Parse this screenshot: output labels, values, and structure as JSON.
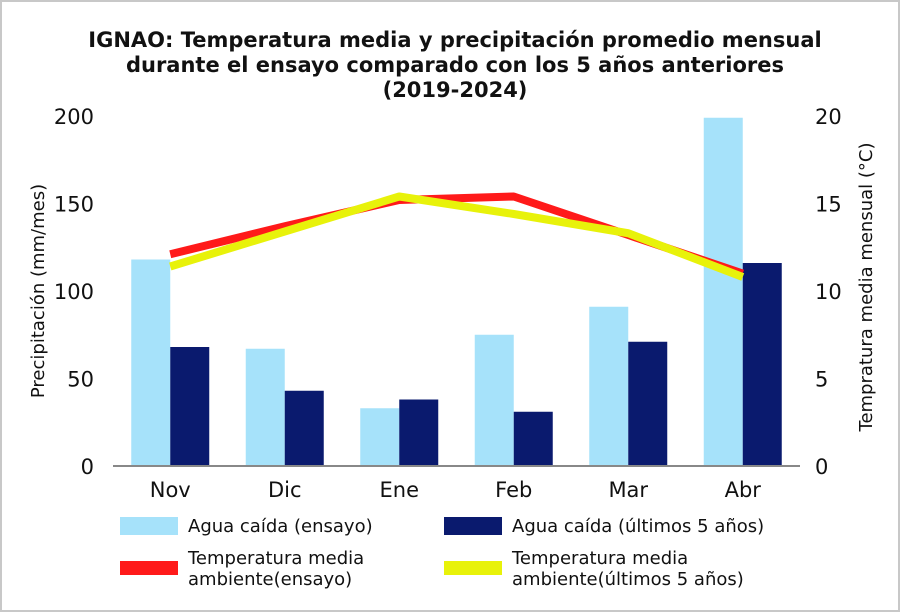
{
  "chart_data": {
    "type": "bar",
    "title_lines": [
      "IGNAO: Temperatura media y precipitación promedio mensual",
      "durante el ensayo comparado con los 5 años anteriores",
      "(2019-2024)"
    ],
    "categories": [
      "Nov",
      "Dic",
      "Ene",
      "Feb",
      "Mar",
      "Abr"
    ],
    "series": [
      {
        "name": "Agua caída (ensayo)",
        "type": "bar",
        "axis": "left",
        "color": "#a6e2fa",
        "values": [
          118,
          67,
          33,
          75,
          91,
          199
        ]
      },
      {
        "name": "Agua caída (últimos 5 años)",
        "type": "bar",
        "axis": "left",
        "color": "#0a1a6e",
        "values": [
          68,
          43,
          38,
          31,
          71,
          116
        ]
      },
      {
        "name": "Temperatura media ambiente(ensayo)",
        "type": "line",
        "axis": "right",
        "color": "#ff1a1a",
        "values": [
          12.1,
          13.7,
          15.2,
          15.4,
          13.2,
          11.0
        ]
      },
      {
        "name": "Temperatura media ambiente(últimos 5 años)",
        "type": "line",
        "axis": "right",
        "color": "#e8f20a",
        "values": [
          11.4,
          13.4,
          15.4,
          14.4,
          13.3,
          10.8
        ]
      }
    ],
    "ylabel": "Precipitación (mm/mes)",
    "ylim": [
      0,
      200
    ],
    "yticks": [
      "0",
      "50",
      "100",
      "150",
      "200"
    ],
    "y2label": "Tempratura media mensual (°C)",
    "y2lim": [
      0,
      20
    ],
    "y2ticks": [
      "0",
      "5",
      "10",
      "15",
      "20"
    ],
    "legend_position": "bottom",
    "legend": [
      {
        "series": 0,
        "lines": [
          "Agua caída (ensayo)"
        ]
      },
      {
        "series": 1,
        "lines": [
          "Agua caída (últimos 5 años)"
        ]
      },
      {
        "series": 2,
        "lines": [
          "Temperatura media",
          "ambiente(ensayo)"
        ]
      },
      {
        "series": 3,
        "lines": [
          "Temperatura media",
          "ambiente(últimos 5 años)"
        ]
      }
    ]
  }
}
